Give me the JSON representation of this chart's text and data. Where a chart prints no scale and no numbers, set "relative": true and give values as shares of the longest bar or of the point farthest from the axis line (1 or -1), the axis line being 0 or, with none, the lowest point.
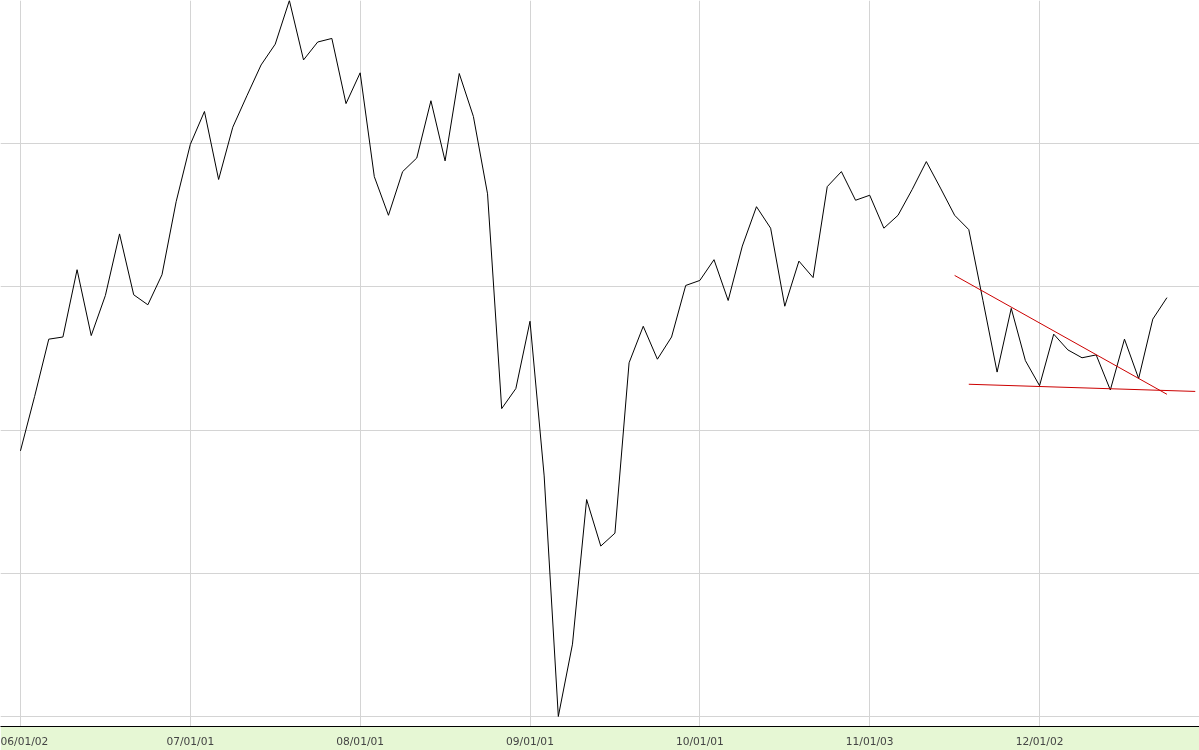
{
  "chart_data": {
    "type": "line",
    "relative": true,
    "grid": true,
    "marker": "none",
    "line_style": "solid",
    "categories": [
      "06/01/02",
      null,
      null,
      null,
      null,
      null,
      null,
      null,
      null,
      null,
      null,
      null,
      "07/01/01",
      null,
      null,
      null,
      null,
      null,
      null,
      null,
      null,
      null,
      null,
      null,
      "08/01/01",
      null,
      null,
      null,
      null,
      null,
      null,
      null,
      null,
      null,
      null,
      null,
      "09/01/01",
      null,
      null,
      null,
      null,
      null,
      null,
      null,
      null,
      null,
      null,
      null,
      "10/01/01",
      null,
      null,
      null,
      null,
      null,
      null,
      null,
      null,
      null,
      null,
      null,
      "11/01/03",
      null,
      null,
      null,
      null,
      null,
      null,
      null,
      null,
      null,
      null,
      null,
      "12/01/02",
      null,
      null,
      null,
      null,
      null,
      null,
      null,
      null,
      null,
      null,
      null
    ],
    "series": [
      {
        "color": "#000000",
        "values": [
          0.371,
          0.447,
          0.527,
          0.53,
          0.624,
          0.532,
          0.588,
          0.674,
          0.589,
          0.575,
          0.617,
          0.719,
          0.799,
          0.845,
          0.75,
          0.823,
          0.867,
          0.91,
          0.939,
          1.0,
          0.917,
          0.942,
          0.947,
          0.856,
          0.899,
          0.754,
          0.7,
          0.761,
          0.78,
          0.86,
          0.776,
          0.898,
          0.838,
          0.73,
          0.43,
          0.458,
          0.552,
          0.336,
          0.0,
          0.101,
          0.303,
          0.238,
          0.256,
          0.494,
          0.545,
          0.499,
          0.53,
          0.602,
          0.609,
          0.638,
          0.581,
          0.657,
          0.712,
          0.682,
          0.573,
          0.636,
          0.613,
          0.74,
          0.761,
          0.721,
          0.728,
          0.682,
          0.7,
          0.736,
          0.775,
          0.738,
          0.7,
          0.68,
          0.581,
          0.481,
          0.57,
          0.497,
          0.462,
          0.534,
          0.512,
          0.501,
          0.505,
          0.456,
          0.527,
          0.472,
          0.555,
          0.585,
          null,
          null
        ]
      },
      {
        "type": "line",
        "color": "#cc0000",
        "values": [
          null,
          null,
          null,
          null,
          null,
          null,
          null,
          null,
          null,
          null,
          null,
          null,
          null,
          null,
          null,
          null,
          null,
          null,
          null,
          null,
          null,
          null,
          null,
          null,
          null,
          null,
          null,
          null,
          null,
          null,
          null,
          null,
          null,
          null,
          null,
          null,
          null,
          null,
          null,
          null,
          null,
          null,
          null,
          null,
          null,
          null,
          null,
          null,
          null,
          null,
          null,
          null,
          null,
          null,
          null,
          null,
          null,
          null,
          null,
          null,
          null,
          null,
          null,
          null,
          null,
          null,
          0.616,
          null,
          null,
          null,
          null,
          null,
          null,
          null,
          null,
          null,
          null,
          null,
          null,
          null,
          null,
          0.45,
          null,
          null
        ]
      },
      {
        "type": "line",
        "color": "#cc0000",
        "values": [
          null,
          null,
          null,
          null,
          null,
          null,
          null,
          null,
          null,
          null,
          null,
          null,
          null,
          null,
          null,
          null,
          null,
          null,
          null,
          null,
          null,
          null,
          null,
          null,
          null,
          null,
          null,
          null,
          null,
          null,
          null,
          null,
          null,
          null,
          null,
          null,
          null,
          null,
          null,
          null,
          null,
          null,
          null,
          null,
          null,
          null,
          null,
          null,
          null,
          null,
          null,
          null,
          null,
          null,
          null,
          null,
          null,
          null,
          null,
          null,
          null,
          null,
          null,
          null,
          null,
          null,
          null,
          0.464,
          null,
          null,
          null,
          null,
          null,
          null,
          null,
          null,
          null,
          null,
          null,
          null,
          null,
          null,
          null,
          0.454
        ]
      }
    ]
  }
}
